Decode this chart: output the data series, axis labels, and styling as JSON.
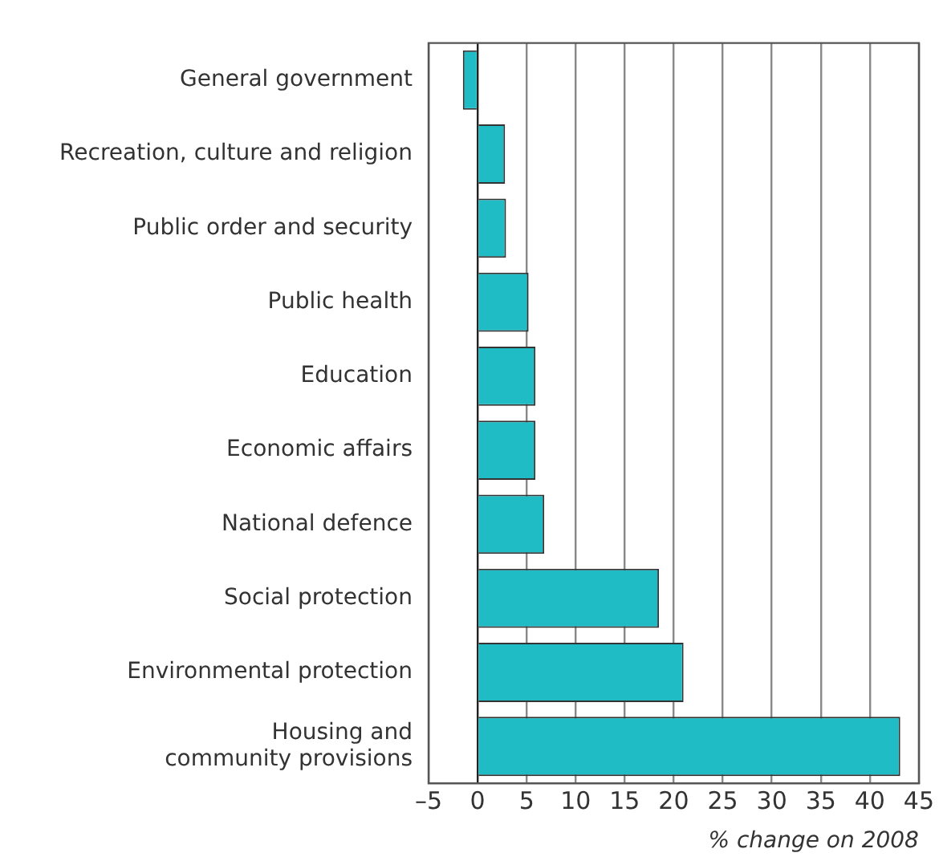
{
  "chart_data": {
    "type": "bar",
    "orientation": "horizontal",
    "categories": [
      "General government",
      "Recreation, culture and religion",
      "Public order and security",
      "Public health",
      "Education",
      "Economic affairs",
      "National defence",
      "Social protection",
      "Environmental protection",
      "Housing and\ncommunity provisions"
    ],
    "values": [
      -1.5,
      2.8,
      2.9,
      5.2,
      5.9,
      5.9,
      6.8,
      18.5,
      21,
      43.1
    ],
    "color": "#1fbcc6",
    "xlim": [
      -5,
      45
    ],
    "xticks": [
      {
        "value": -5,
        "label": "–5"
      },
      0,
      5,
      10,
      15,
      20,
      25,
      30,
      35,
      40,
      45
    ],
    "xlabel": "% change on 2008",
    "grid": "x"
  }
}
